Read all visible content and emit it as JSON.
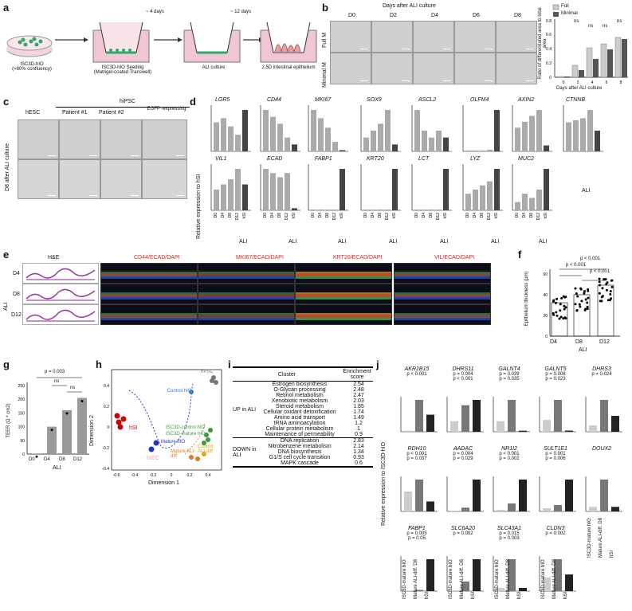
{
  "panels": [
    "a",
    "b",
    "c",
    "d",
    "e",
    "f",
    "g",
    "h",
    "i",
    "j"
  ],
  "a": {
    "steps": [
      {
        "label": "ISC3D-hIO\n(>80% confluency)"
      },
      {
        "label": "ISC3D-hIO Seeding\n(Matrigel-coated Transwell)"
      },
      {
        "label": "ALI culture"
      },
      {
        "label": "2.5D intestinal epithelium"
      }
    ],
    "arrows": [
      "~ 4 days",
      "~ 12 days"
    ]
  },
  "b": {
    "header": "Days after ALI culture",
    "days": [
      "D0",
      "D2",
      "D4",
      "D6",
      "D8"
    ],
    "rows": [
      "Full M",
      "Minimal M"
    ],
    "legend": [
      "Full",
      "Minimal"
    ],
    "ylabel": "Ratio of differentiated area to total area",
    "xlabel": "Days after ALI culture",
    "sig": [
      "ns",
      "ns",
      "ns",
      "ns"
    ]
  },
  "c": {
    "groups": [
      "hESC",
      "hiPSC"
    ],
    "cols": [
      "hESC",
      "Patient #1",
      "Patient #2",
      "EGFP -expressing"
    ],
    "rowlabel": "D8 after ALI culture"
  },
  "d": {
    "ylabel": "Relative expression to hSI",
    "genes_row1": [
      "LGR5",
      "CD44",
      "MKI67",
      "SOX9",
      "ASCL2",
      "OLFM4",
      "AXIN2",
      "CTNNB"
    ],
    "genes_row2": [
      "VIL1",
      "ECAD",
      "FABP1",
      "KRT20",
      "LCT",
      "LYZ",
      "MUC2"
    ],
    "xcats": [
      "D0",
      "D4",
      "D8",
      "D12",
      "hSI"
    ],
    "xgroup": "ALI"
  },
  "e": {
    "rowgroup": "ALI",
    "rows": [
      "D4",
      "D8",
      "D12"
    ],
    "cols": [
      "H&E",
      "CD44/ECAD/DAPI",
      "MKI67/ECAD/DAPI",
      "KRT20/ECAD/DAPI",
      "VIL/ECAD/DAPI"
    ]
  },
  "f": {
    "ylabel": "Epithelium thickness (μm)",
    "cats": [
      "D4",
      "D8",
      "D12"
    ],
    "xgroup": "ALI",
    "pvals": [
      "p < 0.001",
      "p < 0.001",
      "p < 0.001"
    ]
  },
  "g": {
    "ylabel": "TEER (Ω * cm2)",
    "cats": [
      "D0",
      "D4",
      "D8",
      "D12"
    ],
    "xgroup": "ALI",
    "pvals": [
      "p = 0.003",
      "ns",
      "ns"
    ]
  },
  "h": {
    "xlabel": "Dimension 1",
    "ylabel": "Dimension 2",
    "labels": [
      "hPSC",
      "Control hIO",
      "hSI",
      "Mature hIO",
      "ISC3D-control hIO",
      "ISC3D-mature hIO",
      "Mature ALI-diff",
      "Control ALI-diff",
      "hIEC"
    ]
  },
  "i": {
    "headers": [
      "Cluster",
      "Enrichment score"
    ],
    "up_label": "UP in ALI",
    "down_label": "DOWN in ALI",
    "up": [
      [
        "Estrogen biosynthesis",
        "2.54"
      ],
      [
        "O-Glycan processing",
        "2.48"
      ],
      [
        "Retinol metabolism",
        "2.47"
      ],
      [
        "Xenobiotic metabolism",
        "2.03"
      ],
      [
        "Steroid metabolism",
        "1.85"
      ],
      [
        "Cellular oxidant detoxification",
        "1.74"
      ],
      [
        "Amino acid transport",
        "1.49"
      ],
      [
        "tRNA aminoacylation",
        "1.2"
      ],
      [
        "Cellular protein metabolism",
        "1"
      ],
      [
        "Maintenance of permeability",
        "0.9"
      ]
    ],
    "down": [
      [
        "DNA replication",
        "2.83"
      ],
      [
        "Nitrobenzene metabolism",
        "2.14"
      ],
      [
        "DNA biosynthesis",
        "1.34"
      ],
      [
        "G1/S cell cycle transition",
        "0.93"
      ],
      [
        "MAPK cascade",
        "0.6"
      ]
    ]
  },
  "j": {
    "ylabel": "Relative expression to ISC3D-hIO",
    "row1": [
      [
        "AKR1B15",
        "p < 0.001"
      ],
      [
        "DHRS11",
        "p = 0.004"
      ],
      [
        "GALNT4",
        "p = 0.039"
      ],
      [
        "GALNT5",
        "p = 0.008"
      ],
      [
        "DHRS3",
        "p = 0.024"
      ]
    ],
    "row1b": [
      "",
      "p < 0.001",
      "p = 0.035",
      "p = 0.023",
      ""
    ],
    "row2": [
      [
        "RDH10",
        "p < 0.001"
      ],
      [
        "AADAC",
        "p = 0.004"
      ],
      [
        "NR1I2",
        "p < 0.001"
      ],
      [
        "SULT1E1",
        "p < 0.001"
      ],
      [
        "DOUX2",
        ""
      ]
    ],
    "row2b": [
      "p = 0.037",
      "p = 0.029",
      "p = 0.002",
      "p = 0.006",
      ""
    ],
    "row3": [
      [
        "FABP1",
        "p = 0.005"
      ],
      [
        "SLC6A20",
        ""
      ],
      [
        "SLC43A1",
        "p = 0.015"
      ],
      [
        "CLDN3",
        "p = 0.002"
      ]
    ],
    "row3b": [
      "p = 0.05",
      "p = 0.002",
      "p = 0.003",
      ""
    ],
    "xcats": [
      "ISC3D-mature hIO",
      "Mature ALI-diff. D8",
      "hSI"
    ]
  }
}
